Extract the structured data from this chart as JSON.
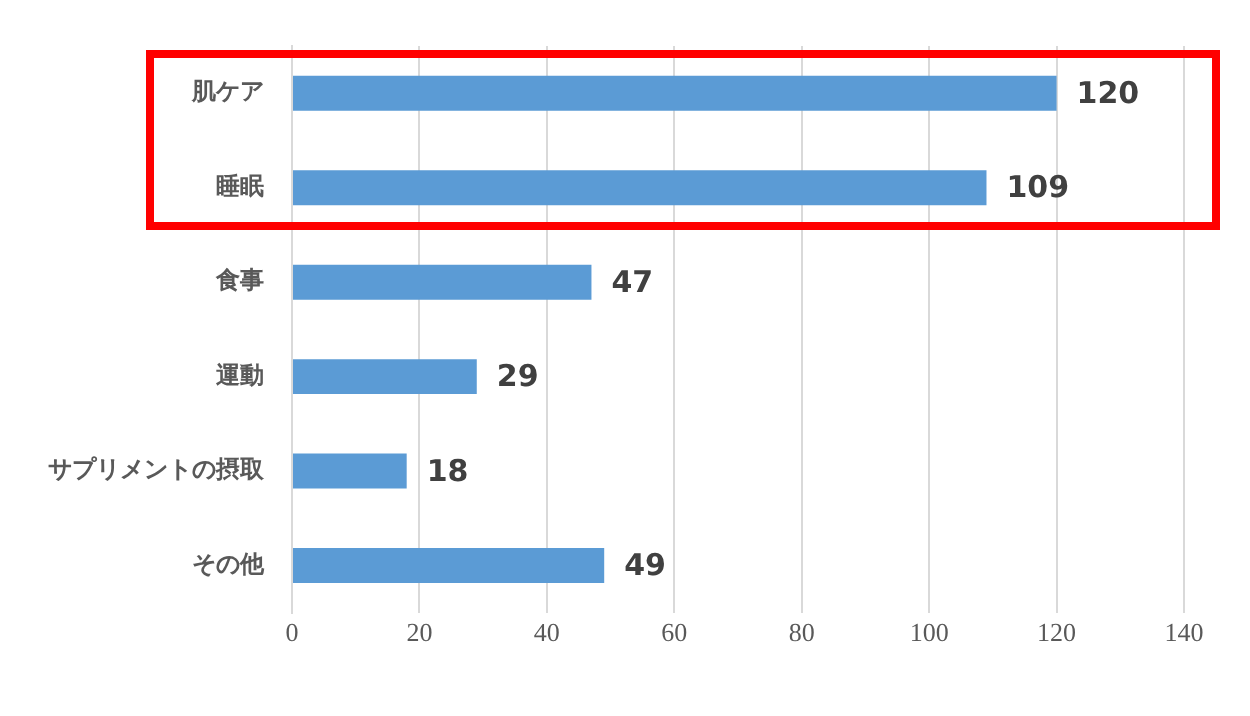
{
  "chart_data": {
    "type": "bar",
    "orientation": "horizontal",
    "categories": [
      "肌ケア",
      "睡眠",
      "食事",
      "運動",
      "サプリメントの摂取",
      "その他"
    ],
    "values": [
      120,
      109,
      47,
      29,
      18,
      49
    ],
    "color": "#5b9bd5",
    "xlim": [
      0,
      140
    ],
    "xticks": [
      0,
      20,
      40,
      60,
      80,
      100,
      120,
      140
    ],
    "grid": "x",
    "legend": false,
    "data_labels": true
  }
}
